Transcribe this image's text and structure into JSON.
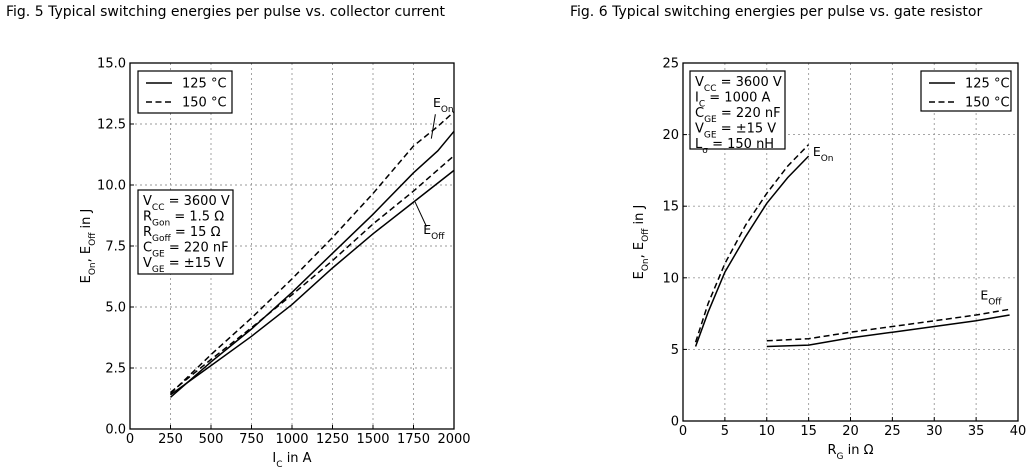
{
  "chart_data": [
    {
      "type": "line",
      "title": "Fig. 5  Typical switching energies per pulse vs. collector current",
      "xlabel": "I_C in A",
      "ylabel": "E_On, E_Off in J",
      "xlim": [
        0,
        2000
      ],
      "ylim": [
        0,
        15
      ],
      "xticks": [
        "0",
        "250",
        "500",
        "750",
        "1000",
        "1250",
        "1500",
        "1750",
        "2000"
      ],
      "yticks": [
        "0.0",
        "2.5",
        "5.0",
        "7.5",
        "10.0",
        "12.5",
        "15.0"
      ],
      "grid": true,
      "legend": {
        "placement": "top-left",
        "entries": [
          {
            "label": "125 °C",
            "style": "solid"
          },
          {
            "label": "150 °C",
            "style": "dashed"
          }
        ]
      },
      "conditions": [
        "V_CC = 3600 V",
        "R_Gon = 1.5 Ω",
        "R_Goff = 15 Ω",
        "C_GE = 220 nF",
        "V_GE = ±15 V"
      ],
      "series": [
        {
          "name": "E_On 125 °C",
          "style": "solid",
          "x": [
            250,
            500,
            750,
            1000,
            1250,
            1500,
            1750,
            1900,
            2000
          ],
          "y": [
            1.3,
            2.75,
            4.1,
            5.6,
            7.2,
            8.8,
            10.5,
            11.4,
            12.2
          ]
        },
        {
          "name": "E_On 150 °C",
          "style": "dashed",
          "x": [
            250,
            500,
            750,
            1000,
            1250,
            1500,
            1750,
            1900,
            2000
          ],
          "y": [
            1.45,
            3.05,
            4.55,
            6.15,
            7.85,
            9.65,
            11.6,
            12.4,
            13.0
          ]
        },
        {
          "name": "E_Off 125 °C",
          "style": "solid",
          "x": [
            250,
            500,
            750,
            1000,
            1250,
            1500,
            1750,
            2000
          ],
          "y": [
            1.4,
            2.6,
            3.8,
            5.1,
            6.6,
            8.0,
            9.3,
            10.6
          ]
        },
        {
          "name": "E_Off 150 °C",
          "style": "dashed",
          "x": [
            250,
            500,
            750,
            1000,
            1250,
            1500,
            1750,
            2000
          ],
          "y": [
            1.5,
            2.85,
            4.15,
            5.5,
            6.9,
            8.4,
            9.75,
            11.2
          ]
        }
      ],
      "annotations": [
        {
          "text": "E_On",
          "x": 1870,
          "y": 13.2
        },
        {
          "text": "E_Off",
          "x": 1810,
          "y": 8.0
        }
      ]
    },
    {
      "type": "line",
      "title": "Fig. 6  Typical switching energies per pulse vs. gate resistor",
      "xlabel": "R_G in Ω",
      "ylabel": "E_On, E_Off in J",
      "xlim": [
        0,
        40
      ],
      "ylim": [
        0,
        25
      ],
      "xticks": [
        "0",
        "5",
        "10",
        "15",
        "20",
        "25",
        "30",
        "35",
        "40"
      ],
      "yticks": [
        "0",
        "5",
        "10",
        "15",
        "20",
        "25"
      ],
      "grid": true,
      "legend": {
        "placement": "top-right",
        "entries": [
          {
            "label": "125 °C",
            "style": "solid"
          },
          {
            "label": "150 °C",
            "style": "dashed"
          }
        ]
      },
      "conditions": [
        "V_CC = 3600 V",
        "I_C = 1000 A",
        "C_GE = 220 nF",
        "V_GE = ±15 V",
        "L_σ = 150 nH"
      ],
      "series": [
        {
          "name": "E_On 125 °C",
          "style": "solid",
          "x": [
            1.5,
            3,
            5,
            7.5,
            10,
            12.5,
            15
          ],
          "y": [
            5.2,
            7.6,
            10.4,
            12.9,
            15.2,
            17.0,
            18.5
          ]
        },
        {
          "name": "E_On 150 °C",
          "style": "dashed",
          "x": [
            1.5,
            3,
            5,
            7.5,
            10,
            12.5,
            15
          ],
          "y": [
            5.5,
            8.2,
            11.0,
            13.7,
            15.9,
            17.8,
            19.3
          ]
        },
        {
          "name": "E_Off 125 °C",
          "style": "solid",
          "x": [
            10,
            15,
            20,
            25,
            30,
            35,
            39
          ],
          "y": [
            5.2,
            5.3,
            5.8,
            6.2,
            6.6,
            7.0,
            7.4
          ]
        },
        {
          "name": "E_Off 150 °C",
          "style": "dashed",
          "x": [
            10,
            15,
            20,
            25,
            30,
            35,
            39
          ],
          "y": [
            5.6,
            5.75,
            6.2,
            6.6,
            7.0,
            7.4,
            7.8
          ]
        }
      ],
      "annotations": [
        {
          "text": "E_On",
          "x": 15.5,
          "y": 18.5
        },
        {
          "text": "E_Off",
          "x": 35.5,
          "y": 8.5
        }
      ]
    }
  ]
}
